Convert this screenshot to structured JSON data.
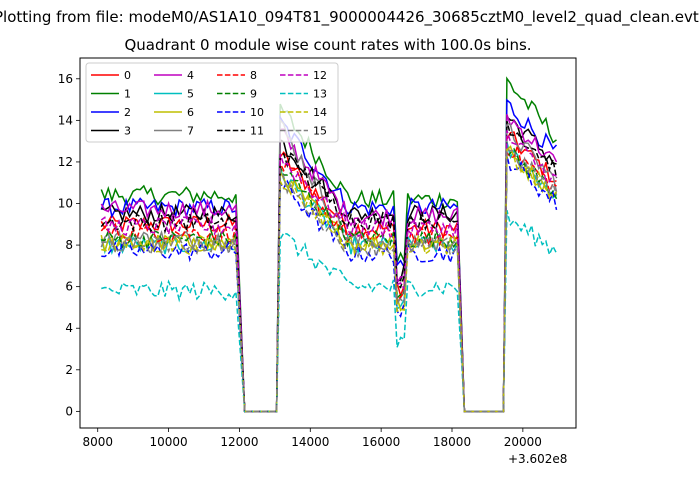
{
  "figure": {
    "suptitle": "Plotting from file: modeM0/AS1A10_094T81_9000004426_30685cztM0_level2_quad_clean.evt",
    "title": "Quadrant 0 module wise count rates with 100.0s bins.",
    "offset_text": "+3.602e8"
  },
  "chart_data": {
    "type": "line",
    "title": "Quadrant 0 module wise count rates with 100.0s bins.",
    "xlabel": "",
    "ylabel": "",
    "x_offset": 360200000,
    "xlim": [
      7500,
      21500
    ],
    "ylim": [
      -0.8,
      17.0
    ],
    "xticks": [
      8000,
      10000,
      12000,
      14000,
      16000,
      18000,
      20000
    ],
    "yticks": [
      0,
      2,
      4,
      6,
      8,
      10,
      12,
      14,
      16
    ],
    "xtick_labels": [
      "8000",
      "10000",
      "12000",
      "14000",
      "16000",
      "18000",
      "20000"
    ],
    "ytick_labels": [
      "0",
      "2",
      "4",
      "6",
      "8",
      "10",
      "12",
      "14",
      "16"
    ],
    "grid": false,
    "legend": {
      "location": "upper-left",
      "columns": 4
    },
    "x_segments": [
      {
        "start": 8100,
        "end": 12050,
        "step": 100
      },
      {
        "start": 12150,
        "end": 13050,
        "step": 100
      },
      {
        "start": 13150,
        "end": 18250,
        "step": 100
      },
      {
        "start": 18350,
        "end": 19450,
        "step": 100
      },
      {
        "start": 19550,
        "end": 21000,
        "step": 100
      }
    ],
    "series": [
      {
        "name": "0",
        "color": "#ff0000",
        "dash": "solid",
        "levels": [
          9.0,
          12.3,
          8.8,
          13.3
        ]
      },
      {
        "name": "1",
        "color": "#008000",
        "dash": "solid",
        "levels": [
          10.4,
          14.6,
          10.2,
          15.9
        ]
      },
      {
        "name": "2",
        "color": "#0000ff",
        "dash": "solid",
        "levels": [
          9.8,
          13.9,
          9.8,
          14.8
        ]
      },
      {
        "name": "3",
        "color": "#000000",
        "dash": "solid",
        "levels": [
          9.5,
          13.0,
          9.5,
          14.2
        ]
      },
      {
        "name": "4",
        "color": "#bf00bf",
        "dash": "solid",
        "levels": [
          9.7,
          13.4,
          9.4,
          14.2
        ]
      },
      {
        "name": "5",
        "color": "#00bfbf",
        "dash": "solid",
        "levels": [
          8.0,
          11.5,
          8.0,
          12.6
        ]
      },
      {
        "name": "6",
        "color": "#bfbf00",
        "dash": "solid",
        "levels": [
          8.1,
          11.4,
          8.1,
          12.5
        ]
      },
      {
        "name": "7",
        "color": "#808080",
        "dash": "solid",
        "levels": [
          8.3,
          13.8,
          8.2,
          13.6
        ]
      },
      {
        "name": "8",
        "color": "#ff0000",
        "dash": "dashed",
        "levels": [
          8.6,
          12.0,
          8.4,
          12.8
        ]
      },
      {
        "name": "9",
        "color": "#008000",
        "dash": "dashed",
        "levels": [
          8.3,
          11.7,
          8.3,
          12.5
        ]
      },
      {
        "name": "10",
        "color": "#0000ff",
        "dash": "dashed",
        "levels": [
          7.7,
          11.0,
          7.6,
          12.2
        ]
      },
      {
        "name": "11",
        "color": "#000000",
        "dash": "dashed",
        "levels": [
          9.1,
          12.6,
          9.2,
          13.9
        ]
      },
      {
        "name": "12",
        "color": "#bf00bf",
        "dash": "dashed",
        "levels": [
          8.9,
          12.2,
          8.8,
          13.2
        ]
      },
      {
        "name": "13",
        "color": "#00bfbf",
        "dash": "dashed",
        "levels": [
          5.8,
          8.5,
          6.0,
          9.3
        ]
      },
      {
        "name": "14",
        "color": "#bfbf00",
        "dash": "dashed",
        "levels": [
          8.0,
          11.3,
          8.0,
          12.4
        ]
      },
      {
        "name": "15",
        "color": "#808080",
        "dash": "dashed",
        "levels": [
          8.0,
          11.2,
          7.9,
          12.7
        ]
      }
    ]
  }
}
